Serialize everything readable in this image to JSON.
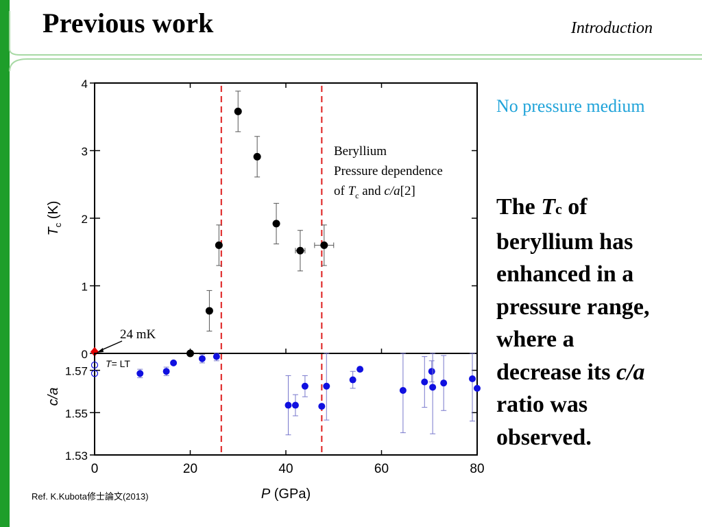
{
  "slide": {
    "title": "Previous work",
    "section": "Introduction",
    "accent_color": "#1e9e2a",
    "side_note": "No pressure medium",
    "side_note_color": "#1fa3d9",
    "body_lines": [
      {
        "pre": "The ",
        "it": "T",
        "sub": "c",
        "post": " of"
      },
      {
        "pre": "beryllium has"
      },
      {
        "pre": "enhanced in a"
      },
      {
        "pre": "pressure range,"
      },
      {
        "pre": "where  a"
      },
      {
        "pre": "decrease its ",
        "it": "c/a"
      },
      {
        "pre": "ratio was"
      },
      {
        "pre": "observed."
      }
    ],
    "reference": "Ref. K.Kubota修士論文(2013)"
  },
  "chart_data": {
    "type": "scatter",
    "xlabel_italic": "P",
    "xlabel_rest": " (GPa)",
    "xlim": [
      0,
      80
    ],
    "xticks": [
      "0",
      "20",
      "40",
      "60",
      "80"
    ],
    "vlines_x": [
      26.5,
      47.5
    ],
    "vline_color": "#e03030",
    "top_panel": {
      "ylabel_italic": "T",
      "ylabel_sub": "c",
      "ylabel_rest": " (K)",
      "ylim": [
        0,
        4
      ],
      "yticks": [
        "0",
        "1",
        "2",
        "3",
        "4"
      ],
      "legend": {
        "line1": "Beryllium",
        "line2": "Pressure dependence",
        "line3_pre": "of ",
        "line3_it": "T",
        "line3_sub": "c",
        "line3_mid": " and ",
        "line3_it2": "c/a",
        "line3_post": "[2]"
      },
      "annotation": "24 mK",
      "marker_color": "#000000",
      "points": [
        {
          "x": 20,
          "y": 0.0
        },
        {
          "x": 24,
          "y": 0.63,
          "yerr": 0.3
        },
        {
          "x": 26,
          "y": 1.6,
          "yerr": 0.3
        },
        {
          "x": 30,
          "y": 3.58,
          "yerr": 0.3
        },
        {
          "x": 34,
          "y": 2.91,
          "yerr": 0.3
        },
        {
          "x": 38,
          "y": 1.92,
          "yerr": 0.3
        },
        {
          "x": 43,
          "y": 1.52,
          "yerr": 0.3,
          "xerr": 1
        },
        {
          "x": 48,
          "y": 1.6,
          "yerr": 0.3,
          "xerr": 2
        }
      ],
      "special_point": {
        "x": 0,
        "y": 0.024,
        "color": "#e00000"
      }
    },
    "bottom_panel": {
      "ylabel_italic": "c/a",
      "ylim": [
        1.53,
        1.578
      ],
      "yticks": [
        1.53,
        1.55,
        1.57
      ],
      "ytick_labels": [
        "1.53",
        "1.55",
        "1.57"
      ],
      "annotation_italic": "T",
      "annotation_rest": "= LT",
      "marker_color": "#1010e0",
      "open_points": [
        {
          "x": 0,
          "y": 1.5725
        },
        {
          "x": 0,
          "y": 1.5685
        }
      ],
      "points": [
        {
          "x": 9.5,
          "y": 1.5685,
          "yerr": 0.002
        },
        {
          "x": 15,
          "y": 1.5695,
          "yerr": 0.002
        },
        {
          "x": 16.5,
          "y": 1.5735
        },
        {
          "x": 22.5,
          "y": 1.5755,
          "yerr": 0.002
        },
        {
          "x": 25.5,
          "y": 1.5765,
          "yerr": 0.002
        },
        {
          "x": 40.5,
          "y": 1.5535,
          "yerr": 0.014
        },
        {
          "x": 42,
          "y": 1.5535,
          "yerr": 0.005
        },
        {
          "x": 44,
          "y": 1.5625,
          "yerr": 0.005
        },
        {
          "x": 47.5,
          "y": 1.553
        },
        {
          "x": 48.5,
          "y": 1.5625,
          "yerr": 0.016
        },
        {
          "x": 54,
          "y": 1.5655,
          "yerr": 0.004
        },
        {
          "x": 55.5,
          "y": 1.5705
        },
        {
          "x": 64.5,
          "y": 1.5605,
          "yerr": 0.02
        },
        {
          "x": 69,
          "y": 1.5645,
          "yerr": 0.012
        },
        {
          "x": 70.5,
          "y": 1.5695,
          "yerr": 0.005
        },
        {
          "x": 70.7,
          "y": 1.562,
          "yerr": 0.022
        },
        {
          "x": 73,
          "y": 1.564,
          "yerr": 0.013
        },
        {
          "x": 79,
          "y": 1.566,
          "yerr": 0.02
        },
        {
          "x": 80,
          "y": 1.5615
        }
      ]
    }
  }
}
